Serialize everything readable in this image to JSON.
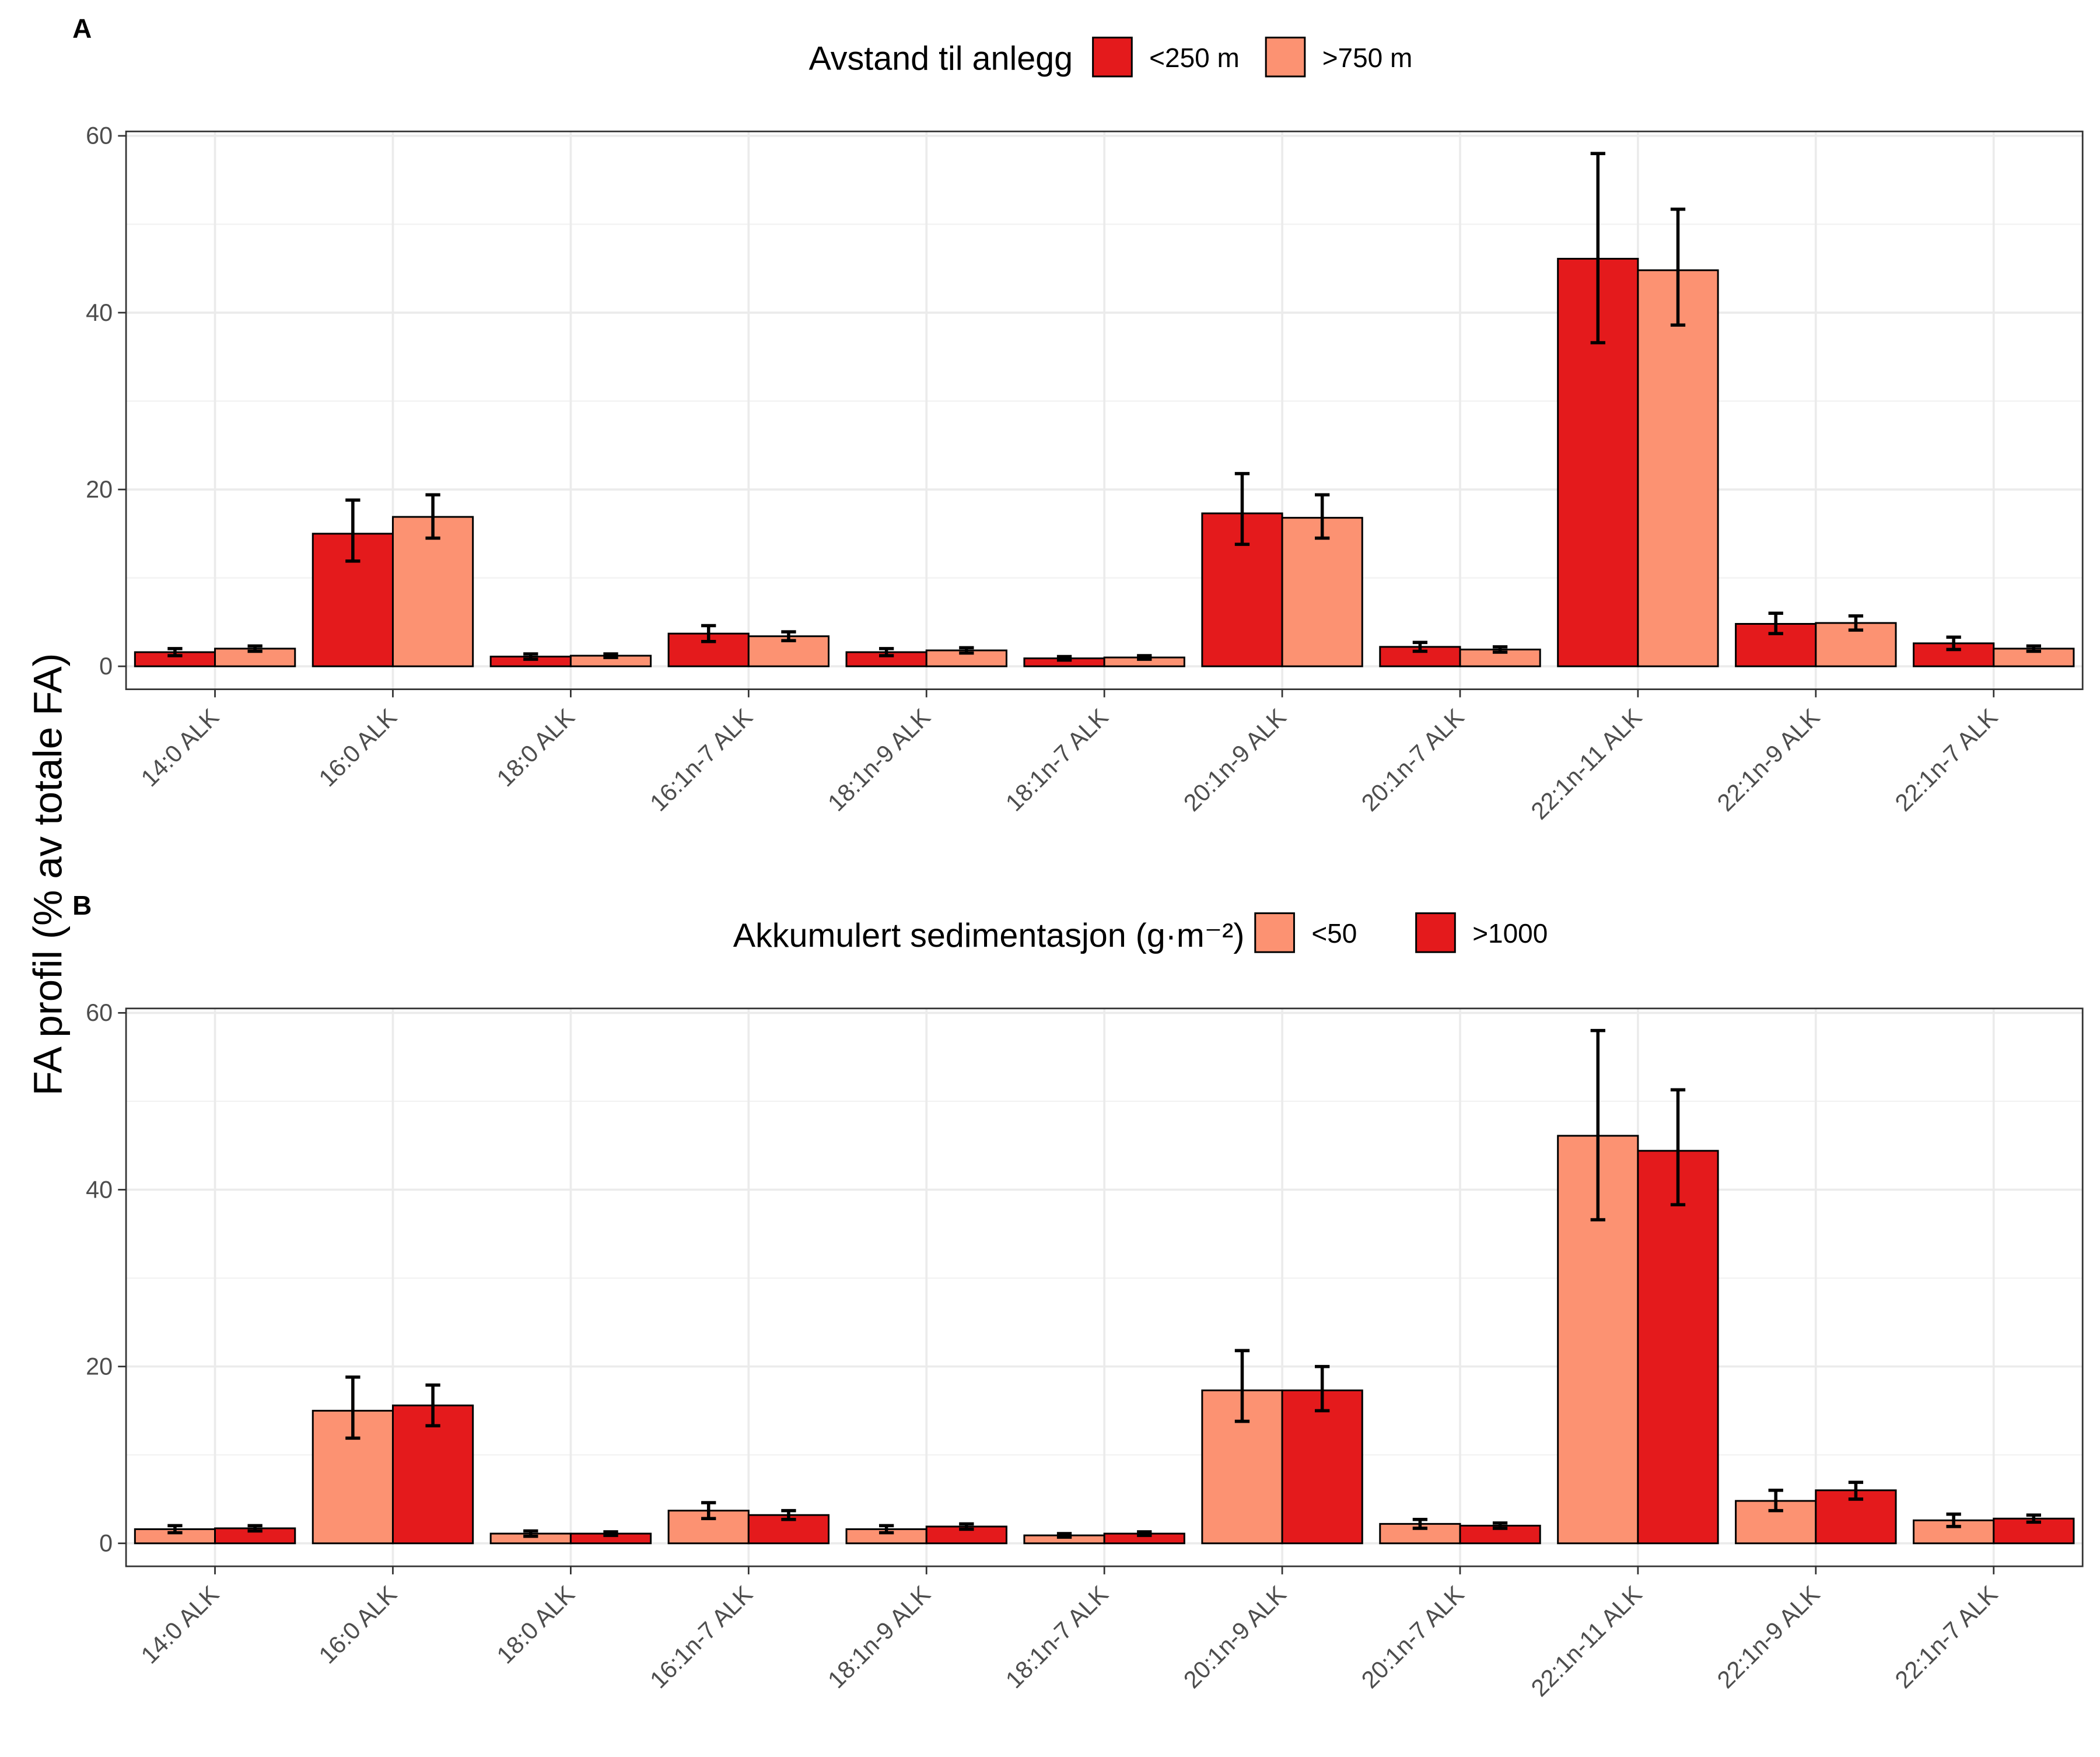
{
  "ylabel": "FA profil (% av totale FA)",
  "colors": {
    "dark": "#e41a1c",
    "light": "#fc9272"
  },
  "chart_data": [
    {
      "panel": "A",
      "type": "bar",
      "legend_title": "Avstand til anlegg",
      "legend_position": "top",
      "categories": [
        "14:0 ALK",
        "16:0 ALK",
        "18:0 ALK",
        "16:1n-7 ALK",
        "18:1n-9 ALK",
        "18:1n-7 ALK",
        "20:1n-9 ALK",
        "20:1n-7 ALK",
        "22:1n-11 ALK",
        "22:1n-9 ALK",
        "22:1n-7 ALK"
      ],
      "ylim": [
        -2.6,
        60.5
      ],
      "yticks": [
        0,
        20,
        40,
        60
      ],
      "series": [
        {
          "name": "<250 m",
          "color": "#e41a1c",
          "values": [
            1.6,
            15.0,
            1.1,
            3.7,
            1.6,
            0.9,
            17.3,
            2.2,
            46.1,
            4.8,
            2.6
          ],
          "err_low": [
            1.2,
            11.9,
            0.8,
            2.8,
            1.2,
            0.7,
            13.8,
            1.7,
            36.6,
            3.7,
            1.9
          ],
          "err_high": [
            2.0,
            18.8,
            1.4,
            4.6,
            2.0,
            1.1,
            21.8,
            2.7,
            58.0,
            6.0,
            3.3
          ]
        },
        {
          "name": ">750 m",
          "color": "#fc9272",
          "values": [
            2.0,
            16.9,
            1.2,
            3.4,
            1.8,
            1.0,
            16.8,
            1.9,
            44.8,
            4.9,
            2.0
          ],
          "err_low": [
            1.7,
            14.5,
            1.0,
            2.9,
            1.5,
            0.8,
            14.5,
            1.6,
            38.6,
            4.1,
            1.7
          ],
          "err_high": [
            2.3,
            19.4,
            1.4,
            3.9,
            2.1,
            1.2,
            19.4,
            2.2,
            51.7,
            5.7,
            2.3
          ]
        }
      ]
    },
    {
      "panel": "B",
      "type": "bar",
      "legend_title": "Akkumulert sedimentasjon (g·m⁻²)",
      "legend_position": "top",
      "categories": [
        "14:0 ALK",
        "16:0 ALK",
        "18:0 ALK",
        "16:1n-7 ALK",
        "18:1n-9 ALK",
        "18:1n-7 ALK",
        "20:1n-9 ALK",
        "20:1n-7 ALK",
        "22:1n-11 ALK",
        "22:1n-9 ALK",
        "22:1n-7 ALK"
      ],
      "ylim": [
        -2.6,
        60.5
      ],
      "yticks": [
        0,
        20,
        40,
        60
      ],
      "series": [
        {
          "name": "<50",
          "color": "#fc9272",
          "values": [
            1.6,
            15.0,
            1.1,
            3.7,
            1.6,
            0.9,
            17.3,
            2.2,
            46.1,
            4.8,
            2.6
          ],
          "err_low": [
            1.2,
            11.9,
            0.8,
            2.8,
            1.2,
            0.7,
            13.8,
            1.7,
            36.6,
            3.7,
            1.9
          ],
          "err_high": [
            2.0,
            18.8,
            1.4,
            4.6,
            2.0,
            1.1,
            21.8,
            2.7,
            58.0,
            6.0,
            3.3
          ]
        },
        {
          "name": ">1000",
          "color": "#e41a1c",
          "values": [
            1.7,
            15.6,
            1.1,
            3.2,
            1.9,
            1.1,
            17.3,
            2.0,
            44.4,
            6.0,
            2.8
          ],
          "err_low": [
            1.4,
            13.3,
            0.9,
            2.7,
            1.6,
            0.9,
            15.0,
            1.7,
            38.3,
            5.0,
            2.4
          ],
          "err_high": [
            2.0,
            17.9,
            1.3,
            3.7,
            2.2,
            1.3,
            20.0,
            2.3,
            51.3,
            6.9,
            3.2
          ]
        }
      ]
    }
  ]
}
